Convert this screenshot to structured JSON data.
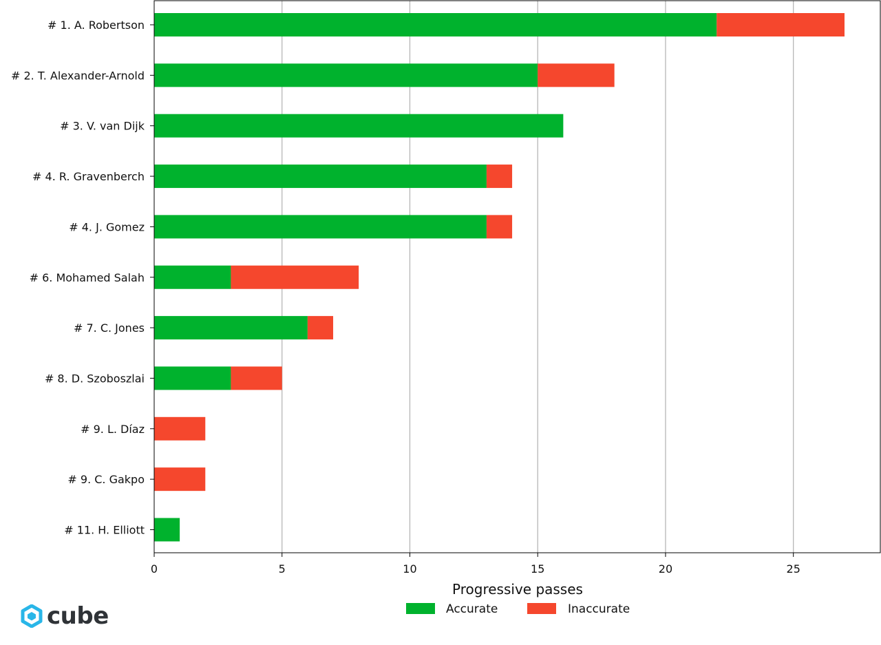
{
  "chart_data": {
    "type": "bar",
    "orientation": "horizontal",
    "stacked": true,
    "categories": [
      "# 1.  A. Robertson",
      "# 2.  T. Alexander-Arnold",
      "# 3.  V. van Dijk",
      "# 4.  R. Gravenberch",
      "# 4.  J. Gomez",
      "# 6.  Mohamed Salah",
      "# 7.  C. Jones",
      "# 8.  D. Szoboszlai",
      "# 9.  L. Díaz",
      "# 9.  C. Gakpo",
      "# 11.  H. Elliott"
    ],
    "series": [
      {
        "name": "Accurate",
        "color": "#00b22d",
        "values": [
          22,
          15,
          16,
          13,
          13,
          3,
          6,
          3,
          0,
          0,
          1
        ]
      },
      {
        "name": "Inaccurate",
        "color": "#f5472d",
        "values": [
          5,
          3,
          0,
          1,
          1,
          5,
          1,
          2,
          2,
          2,
          0
        ]
      }
    ],
    "xlabel": "Progressive passes",
    "xlim": [
      0,
      28.4
    ],
    "xticks": [
      0,
      5,
      10,
      15,
      20,
      25
    ],
    "grid": "vertical",
    "legend_placement": "bottom-center"
  },
  "brand": {
    "name": "cube",
    "logo_icon": "cube-logo-icon",
    "color": "#29b6e8"
  }
}
